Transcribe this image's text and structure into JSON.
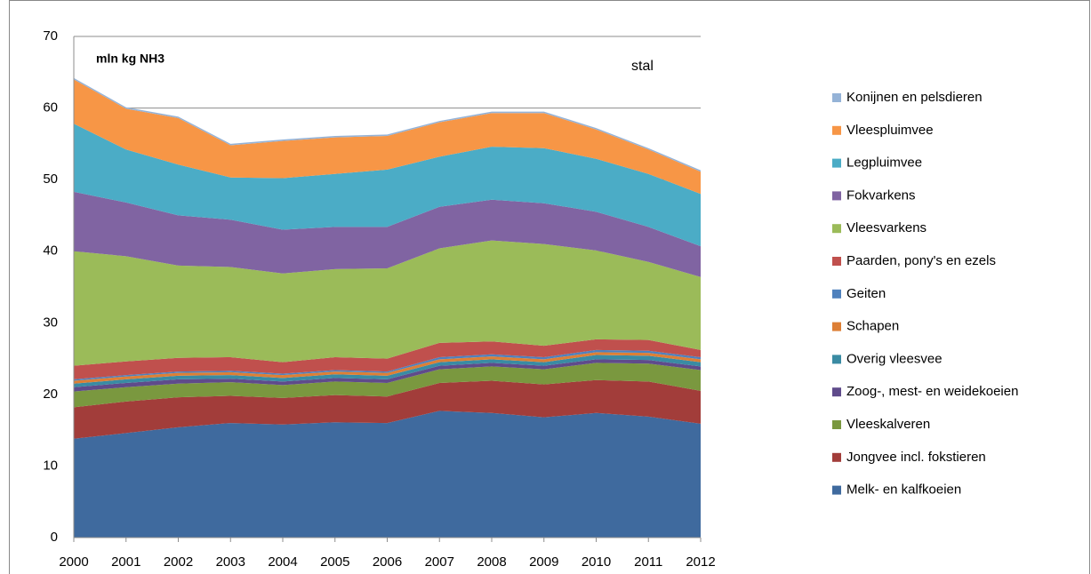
{
  "chart_data": {
    "type": "stacked-area",
    "annotations": [
      "mln kg NH3",
      "stal"
    ],
    "categories": [
      "2000",
      "2001",
      "2002",
      "2003",
      "2004",
      "2005",
      "2006",
      "2007",
      "2008",
      "2009",
      "2010",
      "2011",
      "2012"
    ],
    "ylim": [
      0,
      70
    ],
    "yticks": [
      0,
      10,
      20,
      30,
      40,
      50,
      60,
      70
    ],
    "grid": true,
    "legend": "right",
    "series": [
      {
        "name": "Melk- en kalfkoeien",
        "color": "#3f6a9e",
        "values": [
          13.8,
          14.6,
          15.4,
          16.0,
          15.8,
          16.1,
          16.0,
          17.7,
          17.4,
          16.8,
          17.4,
          16.9,
          15.9
        ]
      },
      {
        "name": "Jongvee incl. fokstieren",
        "color": "#a23d3a",
        "values": [
          4.4,
          4.4,
          4.2,
          3.8,
          3.7,
          3.8,
          3.7,
          3.9,
          4.5,
          4.6,
          4.6,
          4.9,
          4.6
        ]
      },
      {
        "name": "Vleeskalveren",
        "color": "#7a983f",
        "values": [
          2.2,
          2.0,
          1.9,
          1.9,
          1.8,
          1.9,
          1.9,
          1.9,
          2.0,
          2.1,
          2.4,
          2.5,
          2.9
        ]
      },
      {
        "name": "Zoog-, mest- en weidekoeien",
        "color": "#5f4b8b",
        "values": [
          0.6,
          0.6,
          0.6,
          0.5,
          0.5,
          0.5,
          0.5,
          0.5,
          0.5,
          0.5,
          0.5,
          0.5,
          0.5
        ]
      },
      {
        "name": "Overig vleesvee",
        "color": "#3a8ba3",
        "values": [
          0.5,
          0.5,
          0.5,
          0.5,
          0.5,
          0.5,
          0.5,
          0.5,
          0.5,
          0.5,
          0.6,
          0.6,
          0.6
        ]
      },
      {
        "name": "Schapen",
        "color": "#dd7f35",
        "values": [
          0.4,
          0.4,
          0.4,
          0.4,
          0.4,
          0.4,
          0.4,
          0.4,
          0.4,
          0.4,
          0.4,
          0.4,
          0.4
        ]
      },
      {
        "name": "Geiten",
        "color": "#4f81bd",
        "values": [
          0.2,
          0.2,
          0.2,
          0.2,
          0.2,
          0.2,
          0.2,
          0.3,
          0.3,
          0.3,
          0.3,
          0.3,
          0.3
        ]
      },
      {
        "name": "Paarden, pony's en ezels",
        "color": "#c0504d",
        "values": [
          1.9,
          1.9,
          1.9,
          1.9,
          1.6,
          1.8,
          1.8,
          2.0,
          1.8,
          1.6,
          1.5,
          1.5,
          1.0
        ]
      },
      {
        "name": "Vleesvarkens",
        "color": "#9bbb59",
        "values": [
          16.0,
          14.7,
          12.9,
          12.6,
          12.4,
          12.3,
          12.6,
          13.2,
          14.1,
          14.2,
          12.4,
          10.9,
          10.2
        ]
      },
      {
        "name": "Fokvarkens",
        "color": "#8064a2",
        "values": [
          8.3,
          7.5,
          7.0,
          6.6,
          6.1,
          5.9,
          5.8,
          5.8,
          5.7,
          5.7,
          5.4,
          4.9,
          4.3
        ]
      },
      {
        "name": "Legpluimvee",
        "color": "#4bacc6",
        "values": [
          9.5,
          7.4,
          7.1,
          5.9,
          7.2,
          7.4,
          8.0,
          7.0,
          7.4,
          7.7,
          7.4,
          7.4,
          7.3
        ]
      },
      {
        "name": "Vleespluimvee",
        "color": "#f79646",
        "values": [
          6.2,
          5.7,
          6.5,
          4.5,
          5.2,
          5.1,
          4.7,
          4.8,
          4.7,
          4.9,
          4.1,
          3.4,
          3.1
        ]
      },
      {
        "name": "Konijnen en pelsdieren",
        "color": "#95b3d7",
        "values": [
          0.2,
          0.2,
          0.2,
          0.2,
          0.2,
          0.2,
          0.2,
          0.2,
          0.2,
          0.2,
          0.2,
          0.2,
          0.2
        ]
      }
    ]
  }
}
